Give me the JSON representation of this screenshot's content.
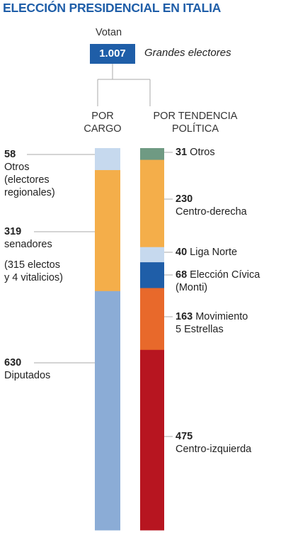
{
  "title": "ELECCIÓN PRESIDENCIAL EN ITALIA",
  "header": {
    "votan": "Votan",
    "total": "1.007",
    "total_label": "Grandes electores"
  },
  "columns": {
    "left": [
      "POR",
      "CARGO"
    ],
    "right": [
      "POR TENDENCIA",
      "POLÍTICA"
    ]
  },
  "colors": {
    "title": "#1f5ea8",
    "total_box": "#1f5ea8",
    "connector": "#aaaaaa"
  },
  "chart_data": {
    "type": "bar",
    "stacked": true,
    "total": 1007,
    "categories": [
      "POR CARGO",
      "POR TENDENCIA POLÍTICA"
    ],
    "series": [
      {
        "category": "POR CARGO",
        "segments": [
          {
            "value": 58,
            "value_label": "58",
            "label": "Otros",
            "sublabel": [
              "(electores",
              "regionales)"
            ],
            "color": "#c6d9ee"
          },
          {
            "value": 319,
            "value_label": "319",
            "label": "senadores",
            "sublabel": [
              "(315 electos",
              "y 4 vitalicios)"
            ],
            "color": "#f4ae4a"
          },
          {
            "value": 630,
            "value_label": "630",
            "label": "Diputados",
            "color": "#8bacd6"
          }
        ]
      },
      {
        "category": "POR TENDENCIA POLÍTICA",
        "segments": [
          {
            "value": 31,
            "value_label": "31",
            "label": "Otros",
            "color": "#6f9a83"
          },
          {
            "value": 230,
            "value_label": "230",
            "label": "Centro-derecha",
            "color": "#f4ae4a"
          },
          {
            "value": 40,
            "value_label": "40",
            "label": "Liga Norte",
            "color": "#c6d9ee"
          },
          {
            "value": 68,
            "value_label": "68",
            "label": "Elección Cívica",
            "sublabel": [
              "(Monti)"
            ],
            "color": "#1f5ea8"
          },
          {
            "value": 163,
            "value_label": "163",
            "label": "Movimiento",
            "sublabel": [
              "5 Estrellas"
            ],
            "color": "#e8692b"
          },
          {
            "value": 475,
            "value_label": "475",
            "label": "Centro-izquierda",
            "color": "#b71520"
          }
        ]
      }
    ]
  }
}
